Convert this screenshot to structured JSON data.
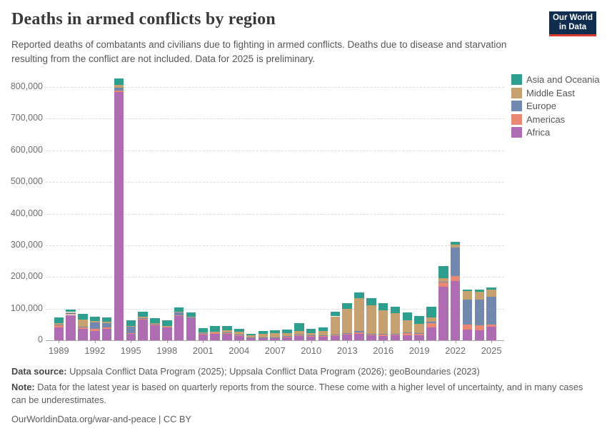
{
  "header": {
    "title": "Deaths in armed conflicts by region",
    "subtitle": "Reported deaths of combatants and civilians due to fighting in armed conflicts. Deaths due to disease and starvation resulting from the conflict are not included. Data for 2025 is preliminary.",
    "logo": {
      "line1": "Our World",
      "line2": "in Data"
    }
  },
  "chart_data": {
    "type": "bar",
    "stacked": true,
    "title": "Deaths in armed conflicts by region",
    "xlabel": "",
    "ylabel": "",
    "ylim": [
      0,
      800000
    ],
    "y_tick_values": [
      0,
      100000,
      200000,
      300000,
      400000,
      500000,
      600000,
      700000,
      800000
    ],
    "y_tick_labels": [
      "0",
      "100,000",
      "200,000",
      "300,000",
      "400,000",
      "500,000",
      "600,000",
      "700,000",
      "800,000"
    ],
    "grid": "horizontal-dashed",
    "legend_position": "right",
    "x": [
      1989,
      1990,
      1991,
      1992,
      1993,
      1994,
      1995,
      1996,
      1997,
      1998,
      1999,
      2000,
      2001,
      2002,
      2003,
      2004,
      2005,
      2006,
      2007,
      2008,
      2009,
      2010,
      2011,
      2012,
      2013,
      2014,
      2015,
      2016,
      2017,
      2018,
      2019,
      2020,
      2021,
      2022,
      2023,
      2024,
      2025
    ],
    "x_tick_years": [
      1989,
      1992,
      1995,
      1998,
      2001,
      2004,
      2007,
      2010,
      2013,
      2016,
      2019,
      2022,
      2025
    ],
    "stack_order_bottom_to_top": [
      "Africa",
      "Americas",
      "Europe",
      "Middle East",
      "Asia and Oceania"
    ],
    "legend_order_top_to_bottom": [
      "Asia and Oceania",
      "Middle East",
      "Europe",
      "Americas",
      "Africa"
    ],
    "series": [
      {
        "name": "Africa",
        "color": "#B06CB2",
        "values": [
          40000,
          80000,
          36000,
          30000,
          37000,
          785000,
          20000,
          65000,
          48000,
          40000,
          77000,
          69000,
          17000,
          20000,
          20000,
          14000,
          6000,
          6000,
          6000,
          9000,
          14000,
          12000,
          12000,
          14000,
          17000,
          20000,
          15000,
          14000,
          15000,
          16000,
          15000,
          41000,
          170000,
          186000,
          34000,
          32000,
          43000
        ]
      },
      {
        "name": "Americas",
        "color": "#E98973",
        "values": [
          8000,
          5000,
          5000,
          5000,
          3000,
          3000,
          2000,
          2000,
          2000,
          2000,
          2000,
          2000,
          4000,
          4000,
          3000,
          3000,
          2000,
          2000,
          2000,
          3000,
          4000,
          4000,
          4000,
          4000,
          4000,
          4000,
          4000,
          5000,
          5000,
          8000,
          6000,
          12000,
          14000,
          16000,
          15000,
          15000,
          6000
        ]
      },
      {
        "name": "Europe",
        "color": "#7189AE",
        "values": [
          1000,
          1000,
          1000,
          21000,
          14000,
          10000,
          21000,
          3000,
          1000,
          2000,
          10000,
          2000,
          2000,
          2000,
          1000,
          1000,
          1000,
          1000,
          500,
          1000,
          1000,
          500,
          500,
          500,
          500,
          5000,
          1000,
          1000,
          500,
          500,
          500,
          5000,
          1000,
          91000,
          79000,
          81000,
          89000
        ]
      },
      {
        "name": "Middle East",
        "color": "#C6A06F",
        "values": [
          4000,
          3000,
          24000,
          4000,
          4000,
          8000,
          3000,
          4000,
          2000,
          2000,
          2000,
          2000,
          2000,
          2000,
          8000,
          8000,
          6000,
          12000,
          13000,
          9000,
          10000,
          7000,
          13000,
          57000,
          77000,
          103000,
          90000,
          75000,
          65000,
          38000,
          30000,
          13000,
          11000,
          9000,
          27000,
          25000,
          21000
        ]
      },
      {
        "name": "Asia and Oceania",
        "color": "#2E9E8F",
        "values": [
          19000,
          9000,
          17000,
          15000,
          14000,
          20000,
          18000,
          16000,
          16000,
          17000,
          12000,
          14000,
          14000,
          17000,
          14000,
          10000,
          5000,
          9000,
          9500,
          12000,
          25000,
          11500,
          10500,
          14500,
          18500,
          20000,
          23000,
          23000,
          19500,
          25500,
          25500,
          36000,
          38000,
          8000,
          4000,
          6000,
          8000
        ]
      }
    ]
  },
  "footer": {
    "data_source_label": "Data source:",
    "data_source_text": " Uppsala Conflict Data Program (2025); Uppsala Conflict Data Program (2026); geoBoundaries (2023)",
    "note_label": "Note:",
    "note_text": " Data for the latest year is based on quarterly reports from the source. These come with a higher level of uncertainty, and in many cases can be underestimates.",
    "url_text": "OurWorldinData.org/war-and-peace | CC BY"
  }
}
